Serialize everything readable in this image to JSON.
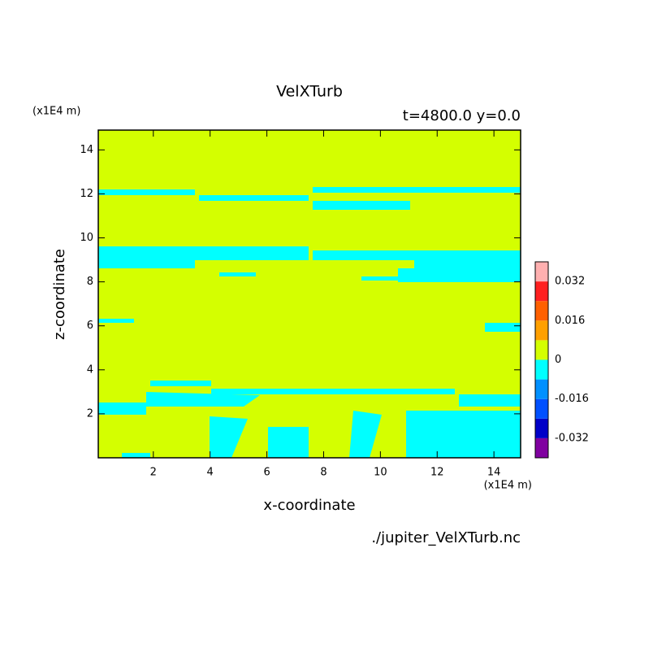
{
  "chart_data": {
    "type": "contour",
    "title": "VelXTurb",
    "subtitle": "t=4800.0 y=0.0",
    "x_label": "x-coordinate",
    "y_label": "z-coordinate",
    "x_unit": "(x1E4 m)",
    "y_unit": "(x1E4 m)",
    "source": "./jupiter_VelXTurb.nc",
    "xlim": [
      0.06,
      14.94
    ],
    "ylim": [
      0,
      14.9
    ],
    "xticks": [
      2,
      4,
      6,
      8,
      10,
      12,
      14
    ],
    "yticks": [
      2,
      4,
      6,
      8,
      10,
      12,
      14
    ],
    "colorbar": {
      "levels": [
        -0.04,
        -0.032,
        -0.024,
        -0.016,
        -0.008,
        0,
        0.008,
        0.016,
        0.024,
        0.032,
        0.04
      ],
      "colors": [
        "#8000a0",
        "#0000c8",
        "#0050ff",
        "#0090ff",
        "#00ffff",
        "#d4ff00",
        "#ffa000",
        "#ff6000",
        "#ff2020",
        "#ffb0b0"
      ],
      "ticks": [
        -0.032,
        -0.016,
        0,
        0.016,
        0.032
      ]
    }
  }
}
